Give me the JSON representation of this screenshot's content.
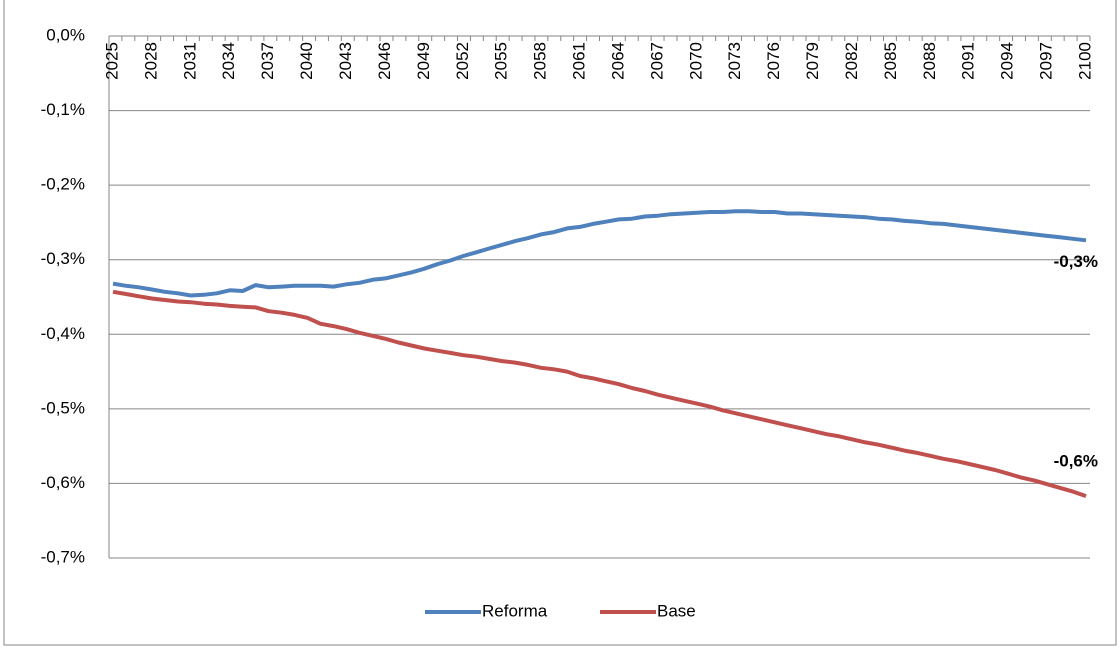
{
  "chart_data": {
    "type": "line",
    "categories": [
      2025,
      null,
      null,
      2028,
      null,
      null,
      2031,
      null,
      null,
      2034,
      null,
      null,
      2037,
      null,
      null,
      2040,
      null,
      null,
      2043,
      null,
      null,
      2046,
      null,
      null,
      2049,
      null,
      null,
      2052,
      null,
      null,
      2055,
      null,
      null,
      2058,
      null,
      null,
      2061,
      null,
      null,
      2064,
      null,
      null,
      2067,
      null,
      null,
      2070,
      null,
      null,
      2073,
      null,
      null,
      2076,
      null,
      null,
      2079,
      null,
      null,
      2082,
      null,
      null,
      2085,
      null,
      null,
      2088,
      null,
      null,
      2091,
      null,
      null,
      2094,
      null,
      null,
      2097,
      null,
      null,
      2100
    ],
    "series": [
      {
        "name": "Reforma",
        "color": "#4f81bd",
        "values": [
          -0.332,
          -0.335,
          -0.337,
          -0.34,
          -0.343,
          -0.345,
          -0.348,
          -0.347,
          -0.345,
          -0.341,
          -0.342,
          -0.334,
          -0.337,
          -0.336,
          -0.335,
          -0.335,
          -0.335,
          -0.336,
          -0.333,
          -0.331,
          -0.327,
          -0.325,
          -0.321,
          -0.317,
          -0.312,
          -0.306,
          -0.301,
          -0.295,
          -0.29,
          -0.285,
          -0.28,
          -0.275,
          -0.271,
          -0.266,
          -0.263,
          -0.258,
          -0.256,
          -0.252,
          -0.249,
          -0.246,
          -0.245,
          -0.242,
          -0.241,
          -0.239,
          -0.238,
          -0.237,
          -0.236,
          -0.236,
          -0.235,
          -0.235,
          -0.236,
          -0.236,
          -0.238,
          -0.238,
          -0.239,
          -0.24,
          -0.241,
          -0.242,
          -0.243,
          -0.245,
          -0.246,
          -0.248,
          -0.249,
          -0.251,
          -0.252,
          -0.254,
          -0.256,
          -0.258,
          -0.26,
          -0.262,
          -0.264,
          -0.266,
          -0.268,
          -0.27,
          -0.272,
          -0.274
        ],
        "value_labels": [
          null,
          null,
          null,
          null,
          null,
          null,
          null,
          null,
          null,
          null,
          null,
          null,
          null,
          null,
          null,
          null,
          null,
          null,
          null,
          null,
          null,
          null,
          null,
          null,
          null,
          null,
          null,
          null,
          null,
          null,
          null,
          null,
          null,
          null,
          null,
          null,
          null,
          null,
          null,
          null,
          null,
          null,
          null,
          null,
          null,
          null,
          null,
          null,
          null,
          null,
          null,
          null,
          null,
          null,
          null,
          null,
          null,
          null,
          null,
          null,
          null,
          null,
          null,
          null,
          null,
          null,
          null,
          null,
          null,
          null,
          null,
          null,
          null,
          null,
          null,
          "-0,3%"
        ]
      },
      {
        "name": "Base",
        "color": "#c0504d",
        "values": [
          -0.343,
          -0.346,
          -0.349,
          -0.352,
          -0.354,
          -0.356,
          -0.357,
          -0.359,
          -0.36,
          -0.362,
          -0.363,
          -0.364,
          -0.369,
          -0.371,
          -0.374,
          -0.378,
          -0.386,
          -0.389,
          -0.393,
          -0.398,
          -0.402,
          -0.406,
          -0.411,
          -0.415,
          -0.419,
          -0.422,
          -0.425,
          -0.428,
          -0.43,
          -0.433,
          -0.436,
          -0.438,
          -0.441,
          -0.445,
          -0.447,
          -0.45,
          -0.456,
          -0.459,
          -0.463,
          -0.467,
          -0.472,
          -0.476,
          -0.481,
          -0.485,
          -0.489,
          -0.493,
          -0.497,
          -0.502,
          -0.506,
          -0.51,
          -0.514,
          -0.518,
          -0.522,
          -0.526,
          -0.53,
          -0.534,
          -0.537,
          -0.541,
          -0.545,
          -0.548,
          -0.552,
          -0.556,
          -0.559,
          -0.563,
          -0.567,
          -0.57,
          -0.574,
          -0.578,
          -0.582,
          -0.587,
          -0.592,
          -0.596,
          -0.601,
          -0.606,
          -0.611,
          -0.617
        ],
        "value_labels": [
          null,
          null,
          null,
          null,
          null,
          null,
          null,
          null,
          null,
          null,
          null,
          null,
          null,
          null,
          null,
          null,
          null,
          null,
          null,
          null,
          null,
          null,
          null,
          null,
          null,
          null,
          null,
          null,
          null,
          null,
          null,
          null,
          null,
          null,
          null,
          null,
          null,
          null,
          null,
          null,
          null,
          null,
          null,
          null,
          null,
          null,
          null,
          null,
          null,
          null,
          null,
          null,
          null,
          null,
          null,
          null,
          null,
          null,
          null,
          null,
          null,
          null,
          null,
          null,
          null,
          null,
          null,
          null,
          null,
          null,
          null,
          null,
          null,
          null,
          null,
          "-0,6%"
        ]
      }
    ],
    "ylim": [
      -0.7,
      0
    ],
    "yticks": [
      {
        "value": 0,
        "label": "0,0%"
      },
      {
        "value": -0.1,
        "label": "-0,1%"
      },
      {
        "value": -0.2,
        "label": "-0,2%"
      },
      {
        "value": -0.3,
        "label": "-0,3%"
      },
      {
        "value": -0.4,
        "label": "-0,4%"
      },
      {
        "value": -0.5,
        "label": "-0,5%"
      },
      {
        "value": -0.6,
        "label": "-0,6%"
      },
      {
        "value": -0.7,
        "label": "-0,7%"
      }
    ],
    "grid": true,
    "legend": "bottom"
  }
}
